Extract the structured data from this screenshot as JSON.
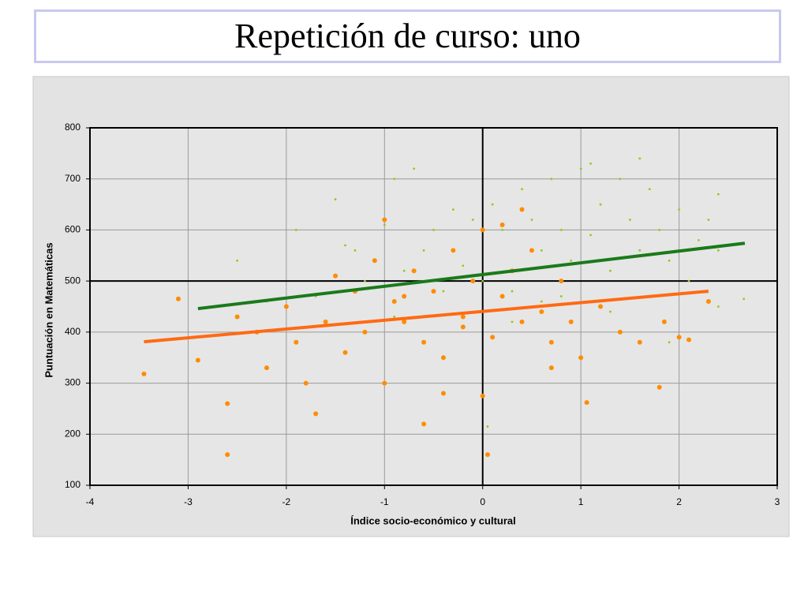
{
  "slide_title": "Repetición de curso: uno",
  "chart_data": {
    "type": "scatter",
    "x_label": "Índice socio-económico y cultural",
    "y_label": "Puntuación en Matemáticas",
    "xlim": [
      -4,
      3
    ],
    "ylim": [
      100,
      800
    ],
    "xticks": [
      -4,
      -3,
      -2,
      -1,
      0,
      1,
      2,
      3
    ],
    "yticks": [
      100,
      200,
      300,
      400,
      500,
      600,
      700,
      800
    ],
    "grid": true,
    "origin_lines": {
      "x": 0,
      "y": 500
    },
    "series": [
      {
        "type": "scatter",
        "color": "#8fcc1a",
        "marker_radius": 1.4,
        "x": [
          -2.5,
          -2.2,
          -1.9,
          -1.7,
          -1.5,
          -1.3,
          -1.2,
          -1.0,
          -0.9,
          -0.8,
          -0.7,
          -0.6,
          -0.5,
          -0.4,
          -0.3,
          -0.2,
          -0.1,
          0.0,
          0.1,
          0.2,
          0.3,
          0.4,
          0.5,
          0.6,
          0.7,
          0.8,
          0.9,
          1.0,
          1.1,
          1.2,
          1.3,
          1.4,
          1.5,
          1.6,
          1.7,
          1.8,
          1.9,
          2.0,
          2.1,
          2.2,
          2.3,
          2.4,
          2.4,
          2.4,
          1.1,
          1.6,
          -0.9,
          -0.6,
          0.3,
          0.8,
          1.3,
          1.9,
          -1.4,
          0.05,
          0.6,
          2.66
        ],
        "values": [
          540,
          460,
          600,
          470,
          660,
          560,
          500,
          610,
          700,
          520,
          720,
          560,
          600,
          480,
          640,
          530,
          620,
          500,
          650,
          600,
          480,
          680,
          620,
          560,
          700,
          600,
          540,
          720,
          590,
          650,
          520,
          700,
          620,
          560,
          680,
          600,
          540,
          640,
          500,
          580,
          620,
          670,
          450,
          560,
          730,
          740,
          430,
          380,
          420,
          470,
          440,
          380,
          570,
          215,
          460,
          465
        ]
      },
      {
        "type": "scatter",
        "color": "#ff8c00",
        "marker_radius": 3,
        "x": [
          -3.45,
          -3.1,
          -2.9,
          -2.6,
          -2.6,
          -2.5,
          -2.3,
          -2.2,
          -2.0,
          -1.9,
          -1.7,
          -1.6,
          -1.5,
          -1.4,
          -1.3,
          -1.2,
          -1.1,
          -1.0,
          -0.9,
          -0.8,
          -0.7,
          -0.6,
          -0.6,
          -0.5,
          -0.4,
          -0.3,
          -0.2,
          -0.1,
          0.0,
          0.0,
          0.05,
          0.1,
          0.2,
          0.3,
          0.4,
          0.5,
          0.6,
          0.7,
          0.8,
          0.9,
          1.0,
          1.06,
          1.2,
          1.4,
          1.6,
          1.8,
          1.85,
          2.0,
          2.1,
          2.3,
          -1.8,
          -1.0,
          -0.4,
          0.2,
          0.7,
          -0.8,
          -0.2,
          0.4
        ],
        "values": [
          318,
          465,
          345,
          160,
          260,
          430,
          400,
          330,
          450,
          380,
          240,
          420,
          510,
          360,
          480,
          400,
          540,
          300,
          460,
          420,
          520,
          220,
          380,
          480,
          350,
          560,
          430,
          500,
          275,
          600,
          160,
          390,
          470,
          520,
          420,
          560,
          440,
          380,
          500,
          420,
          350,
          262,
          450,
          400,
          380,
          292,
          420,
          390,
          385,
          460,
          300,
          620,
          280,
          610,
          330,
          470,
          410,
          640
        ]
      },
      {
        "type": "line",
        "color": "#1a7a1a",
        "x": [
          -2.9,
          2.67
        ],
        "values": [
          446,
          574
        ]
      },
      {
        "type": "line",
        "color": "#ff6a13",
        "x": [
          -3.45,
          2.3
        ],
        "values": [
          381,
          480
        ]
      }
    ]
  }
}
